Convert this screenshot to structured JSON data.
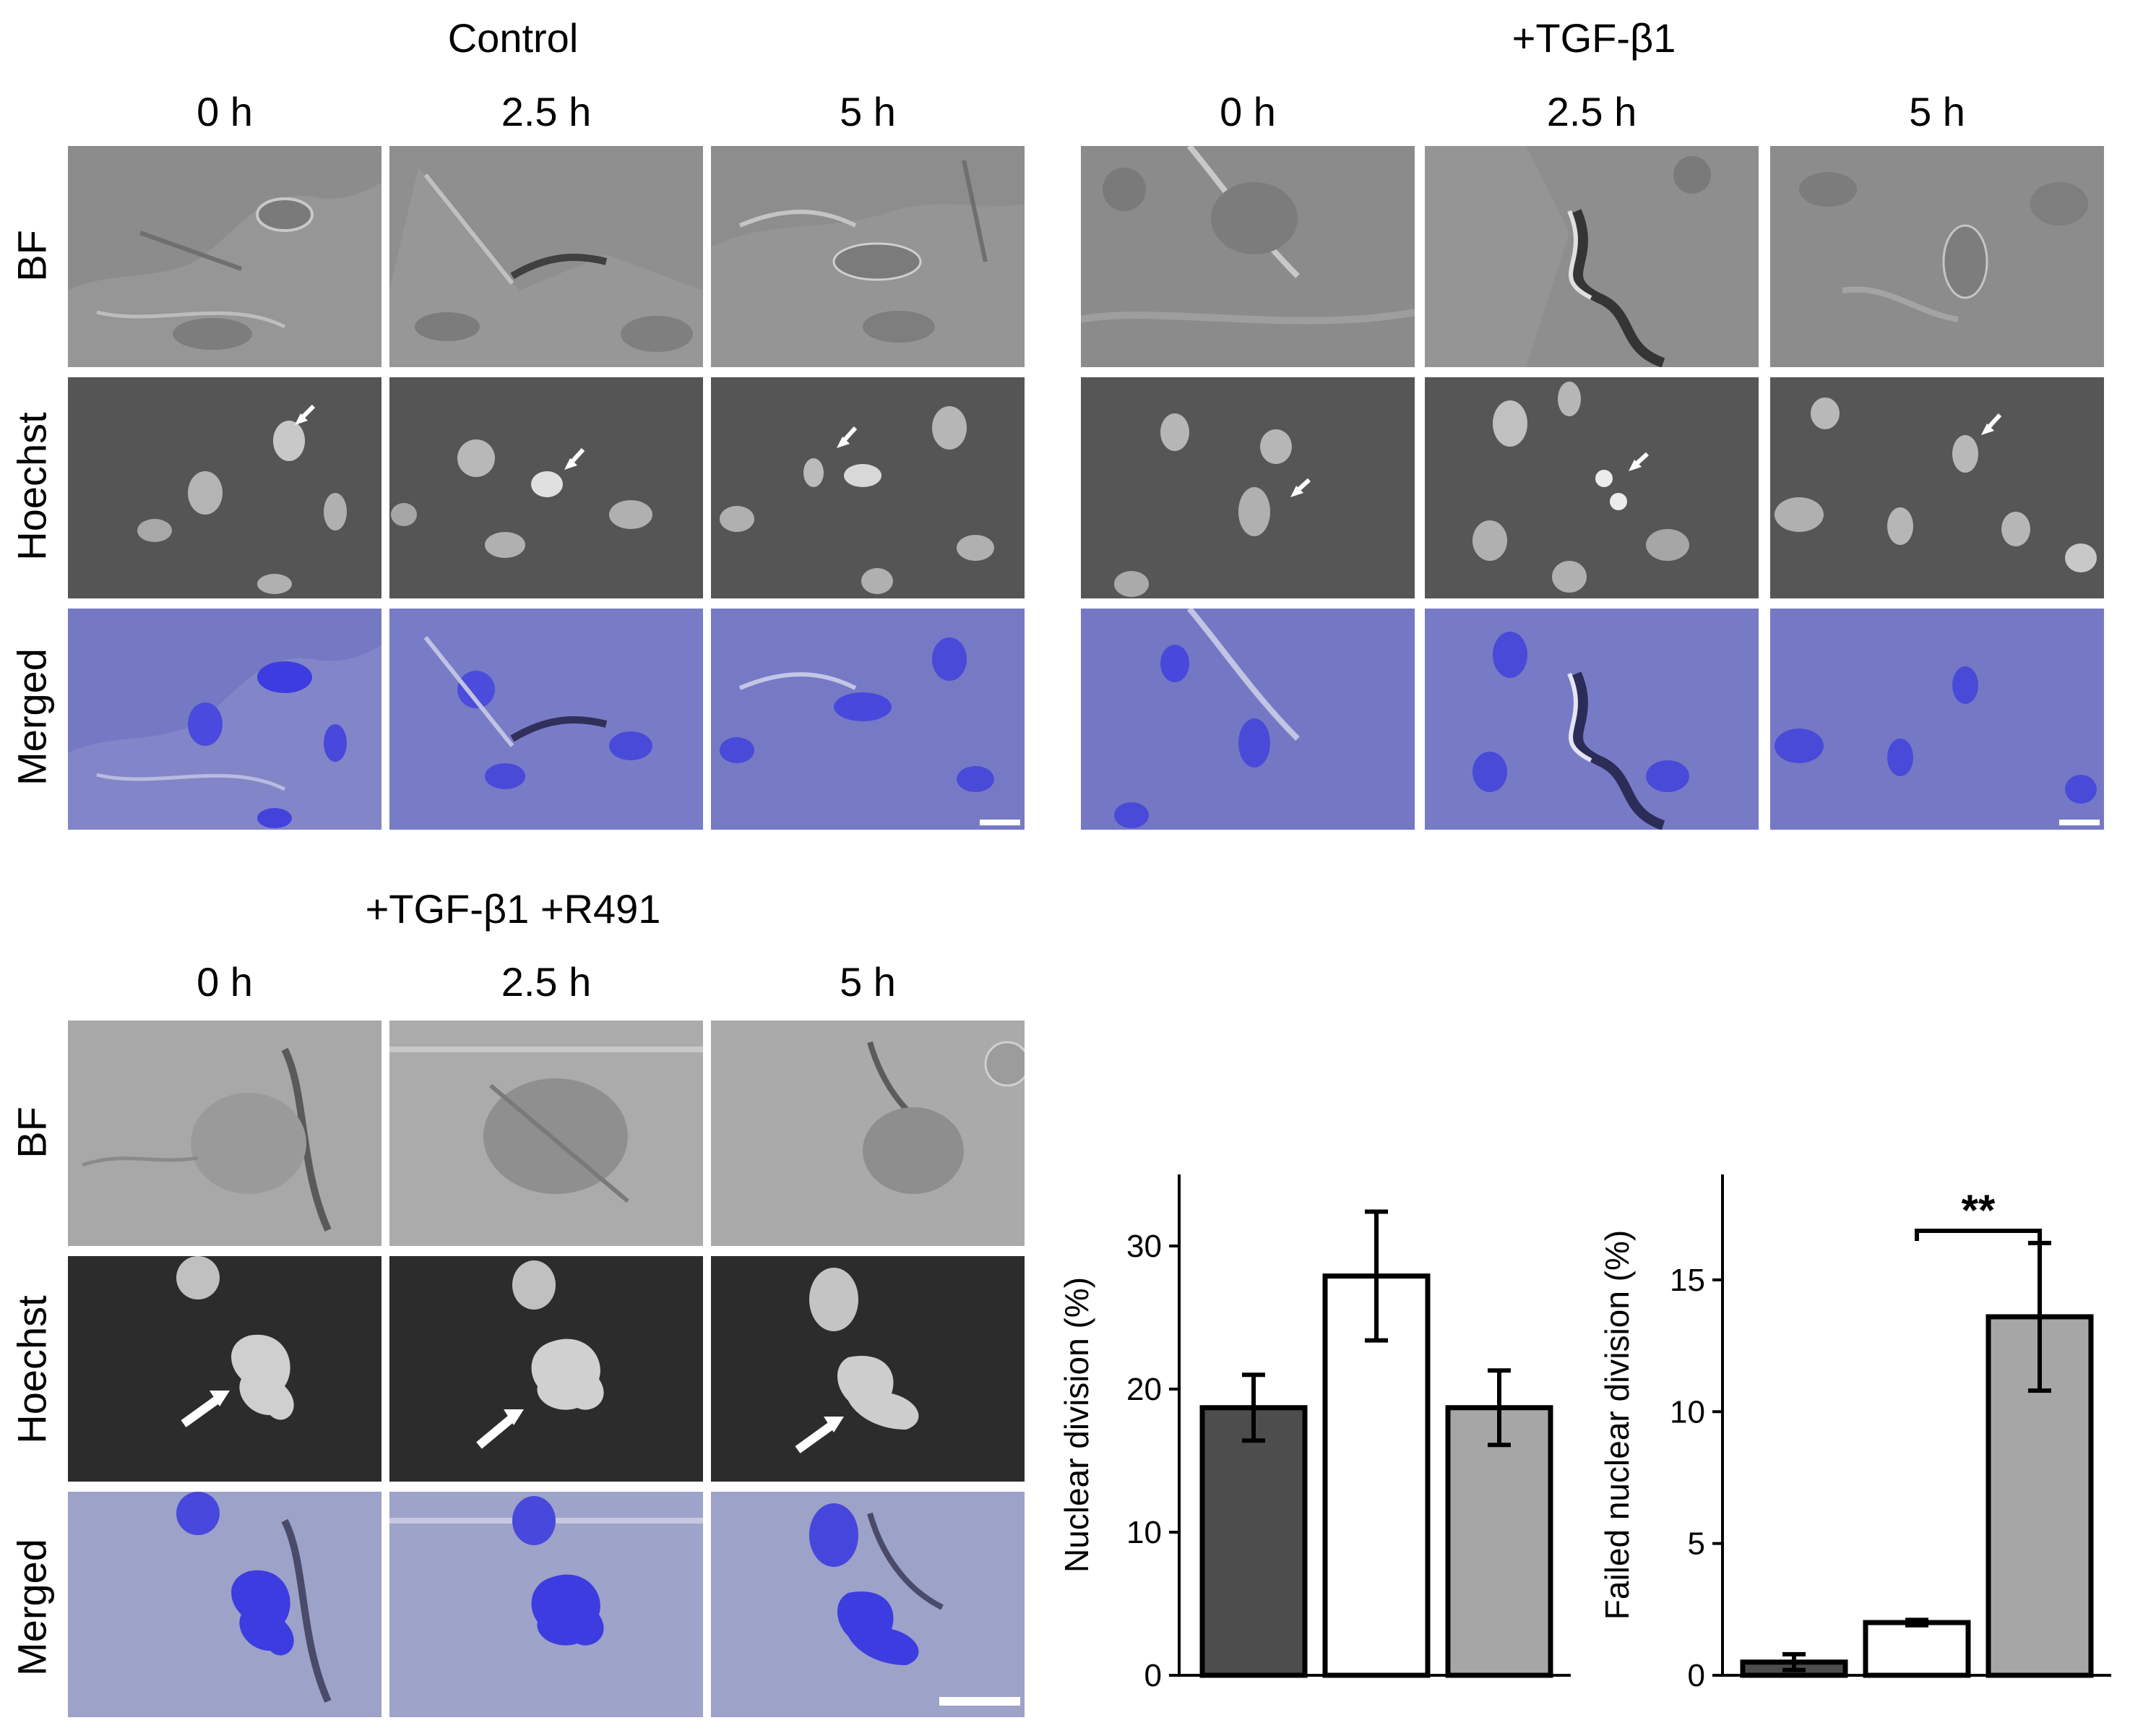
{
  "groups": [
    {
      "title": "Control",
      "times": [
        "0 h",
        "2.5 h",
        "5 h"
      ],
      "rows": [
        "BF",
        "Hoechst",
        "Merged"
      ],
      "palette": {
        "bf": "#8e8e8e",
        "hoechst": "#505050",
        "merged": "#7478c8"
      }
    },
    {
      "title": "+TGF-β1",
      "times": [
        "0 h",
        "2.5 h",
        "5 h"
      ],
      "rows": [],
      "palette": {
        "bf": "#8e8e8e",
        "hoechst": "#505050",
        "merged": "#7478c8"
      }
    },
    {
      "title": "+TGF-β1 +R491",
      "times": [
        "0 h",
        "2.5 h",
        "5 h"
      ],
      "rows": [
        "BF",
        "Hoechst",
        "Merged"
      ],
      "palette": {
        "bf": "#a9a9a9",
        "hoechst": "#2a2a2a",
        "merged": "#9aa0c8"
      }
    }
  ],
  "chart_data": [
    {
      "type": "bar",
      "categories": [
        "",
        "",
        ""
      ],
      "values": [
        18.7,
        27.9,
        18.7
      ],
      "errors": [
        2.3,
        4.5,
        2.6
      ],
      "colors": [
        "#4d4d4d",
        "#ffffff",
        "#a6a6a6"
      ],
      "ylabel": "Nuclear division (%)",
      "ylim": [
        0,
        35
      ],
      "yticks": [
        0,
        10,
        20,
        30
      ],
      "ytick_labels": [
        "0",
        "10",
        "20",
        "30"
      ],
      "significance": []
    },
    {
      "type": "bar",
      "categories": [
        "",
        "",
        ""
      ],
      "values": [
        0.5,
        2.0,
        13.6
      ],
      "errors": [
        0.3,
        0.1,
        2.8
      ],
      "colors": [
        "#4d4d4d",
        "#ffffff",
        "#a6a6a6"
      ],
      "ylabel": "Failed nuclear division (%)",
      "ylim": [
        0,
        19
      ],
      "yticks": [
        0,
        5,
        10,
        15
      ],
      "ytick_labels": [
        "0",
        "5",
        "10",
        "15"
      ],
      "significance": [
        {
          "from": 1,
          "to": 2,
          "label": "**"
        }
      ]
    }
  ]
}
